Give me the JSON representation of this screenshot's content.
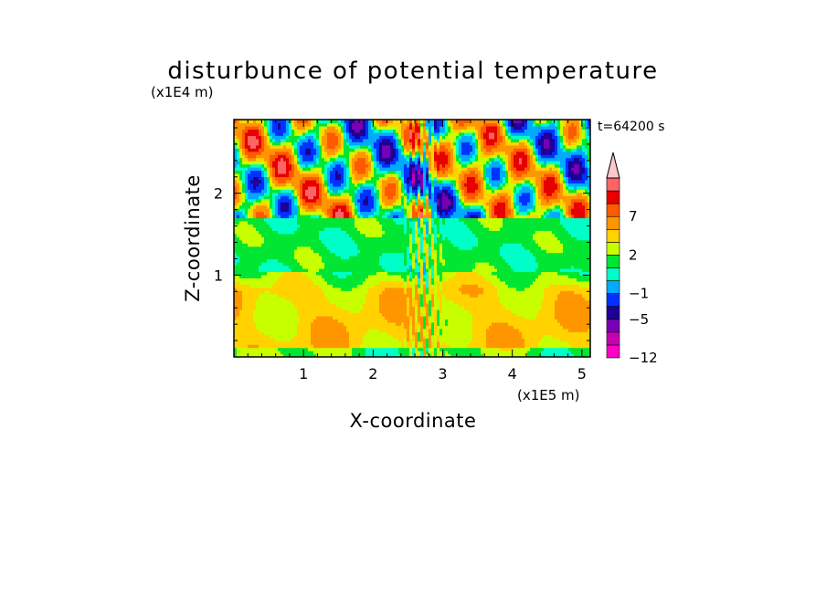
{
  "chart_data": {
    "type": "heatmap",
    "title": "disturbunce of potential temperature",
    "xlabel": "X-coordinate",
    "ylabel": "Z-coordinate",
    "x_unit": "(x1E5 m)",
    "y_unit": "(x1E4 m)",
    "time_label": "t=64200 s",
    "xlim": [
      0,
      5.12
    ],
    "ylim": [
      0,
      2.9
    ],
    "xticks": [
      1,
      2,
      3,
      4,
      5
    ],
    "yticks": [
      1,
      2
    ],
    "colorbar": {
      "levels": [
        -12,
        -9,
        -7,
        -5,
        -3,
        -1,
        0,
        1,
        2,
        3,
        5,
        7,
        9,
        11
      ],
      "colors": [
        "#ff00c8",
        "#c800b4",
        "#7800b4",
        "#1e0096",
        "#0032ff",
        "#00aaff",
        "#00ffc8",
        "#00e632",
        "#c8ff00",
        "#ffd200",
        "#ff9600",
        "#ff5a00",
        "#e60000",
        "#ff6464",
        "#ffc8c8"
      ],
      "tick_labels": [
        "7",
        "2",
        "-1",
        "-5",
        "-12"
      ],
      "tick_values": [
        7,
        2,
        -1,
        -5,
        -12
      ]
    }
  }
}
